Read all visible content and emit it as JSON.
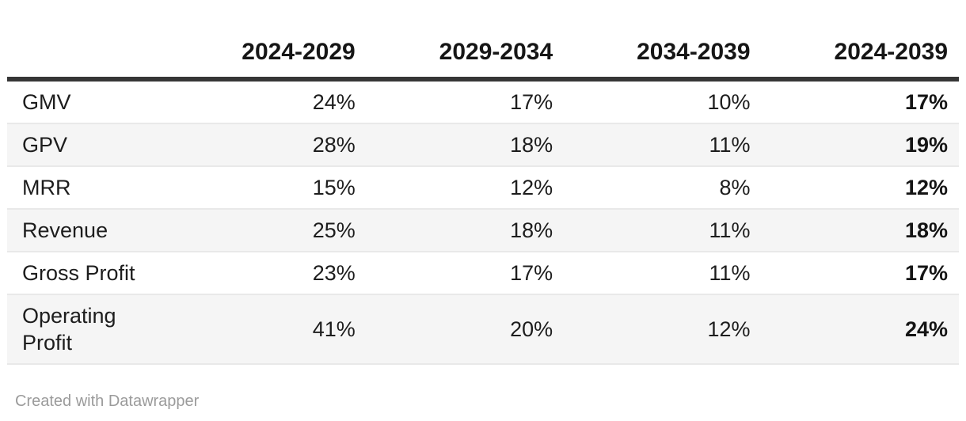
{
  "chart_data": {
    "type": "table",
    "title": "",
    "columns": [
      "",
      "2024-2029",
      "2029-2034",
      "2034-2039",
      "2024-2039"
    ],
    "categories": [
      "2024-2029",
      "2029-2034",
      "2034-2039",
      "2024-2039"
    ],
    "series": [
      {
        "name": "GMV",
        "values": [
          "24%",
          "17%",
          "10%",
          "17%"
        ]
      },
      {
        "name": "GPV",
        "values": [
          "28%",
          "18%",
          "11%",
          "19%"
        ]
      },
      {
        "name": "MRR",
        "values": [
          "15%",
          "12%",
          "8%",
          "12%"
        ]
      },
      {
        "name": "Revenue",
        "values": [
          "25%",
          "18%",
          "11%",
          "18%"
        ]
      },
      {
        "name": "Gross Profit",
        "values": [
          "23%",
          "17%",
          "11%",
          "17%"
        ]
      },
      {
        "name": "Operating Profit",
        "values": [
          "41%",
          "20%",
          "12%",
          "24%"
        ]
      }
    ],
    "layout_hints": {
      "first_column_align": "left",
      "value_columns_align": "right",
      "emphasized_column": "2024-2039",
      "striped_rows": true,
      "stripe_color": "#f5f5f5",
      "header_rule_color": "#363636",
      "row_divider_color": "#e9e9e9"
    }
  },
  "footer": {
    "attribution": "Created with Datawrapper"
  },
  "colors": {
    "text": "#1d1d1d",
    "header_text": "#161616",
    "muted_text": "#9b9b9b",
    "background": "#ffffff"
  }
}
